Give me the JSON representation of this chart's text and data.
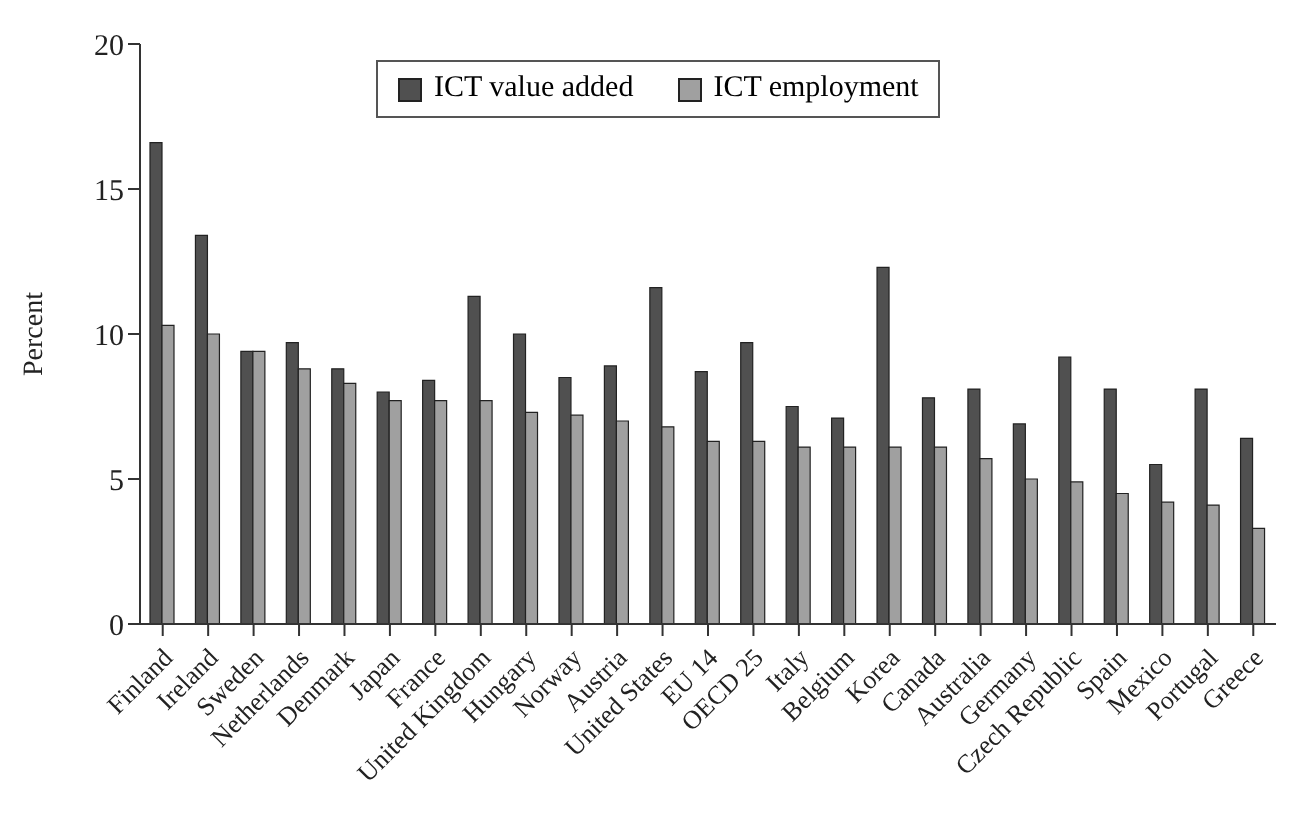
{
  "chart_data": {
    "type": "bar",
    "ylabel": "Percent",
    "categories": [
      "Finland",
      "Ireland",
      "Sweden",
      "Netherlands",
      "Denmark",
      "Japan",
      "France",
      "United Kingdom",
      "Hungary",
      "Norway",
      "Austria",
      "United States",
      "EU 14",
      "OECD 25",
      "Italy",
      "Belgium",
      "Korea",
      "Canada",
      "Australia",
      "Germany",
      "Czech Republic",
      "Spain",
      "Mexico",
      "Portugal",
      "Greece"
    ],
    "series": [
      {
        "name": "ICT value added",
        "color": "#505050",
        "values": [
          16.6,
          13.4,
          9.4,
          9.7,
          8.8,
          8.0,
          8.4,
          11.3,
          10.0,
          8.5,
          8.9,
          11.6,
          8.7,
          9.7,
          7.5,
          7.1,
          12.3,
          7.8,
          8.1,
          6.9,
          9.2,
          8.1,
          5.5,
          8.1,
          6.4
        ]
      },
      {
        "name": "ICT employment",
        "color": "#a0a0a0",
        "values": [
          10.3,
          10.0,
          9.4,
          8.8,
          8.3,
          7.7,
          7.7,
          7.7,
          7.3,
          7.2,
          7.0,
          6.8,
          6.3,
          6.3,
          6.1,
          6.1,
          6.1,
          6.1,
          5.7,
          5.0,
          4.9,
          4.5,
          4.2,
          4.1,
          3.3
        ]
      }
    ],
    "ylim": [
      0,
      20
    ],
    "yticks": [
      0,
      5,
      10,
      15,
      20
    ],
    "legend": "top"
  }
}
